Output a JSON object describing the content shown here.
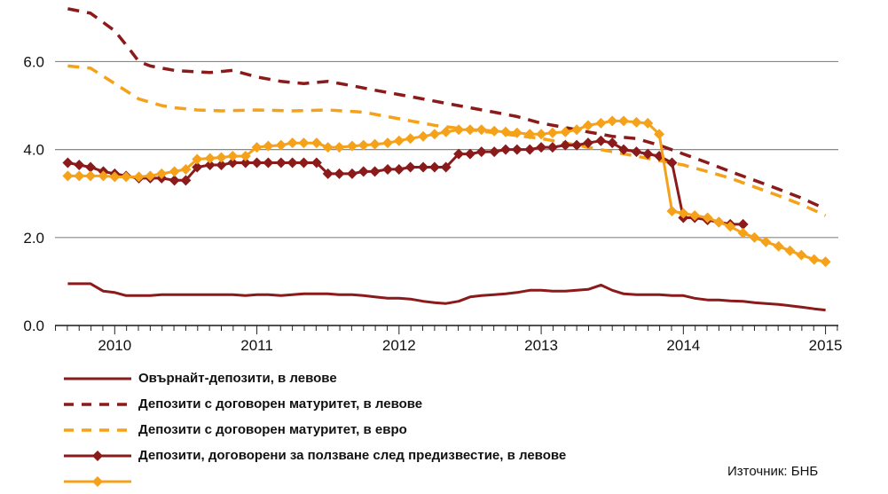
{
  "chart_data": {
    "type": "line",
    "xlabel": "",
    "ylabel": "",
    "ylim": [
      0,
      7.4
    ],
    "yticks": [
      "0.0",
      "2.0",
      "4.0",
      "6.0"
    ],
    "ytick_values": [
      0,
      2,
      4,
      6
    ],
    "xticks": [
      "2010",
      "2011",
      "2012",
      "2013",
      "2014",
      "2015"
    ],
    "xtick_values": [
      2010,
      2011,
      2012,
      2013,
      2014,
      2015
    ],
    "xlim": [
      2009.58,
      2015.09
    ],
    "grid": true,
    "legend_position": "bottom",
    "series": [
      {
        "name": "Овърнайт-депозити, в левове",
        "color": "#8b1a1a",
        "style": "solid",
        "x": [
          2009.67,
          2009.83,
          2009.92,
          2010.0,
          2010.08,
          2010.17,
          2010.25,
          2010.33,
          2010.42,
          2010.5,
          2010.58,
          2010.67,
          2010.75,
          2010.83,
          2010.92,
          2011.0,
          2011.08,
          2011.17,
          2011.25,
          2011.33,
          2011.42,
          2011.5,
          2011.58,
          2011.67,
          2011.75,
          2011.83,
          2011.92,
          2012.0,
          2012.08,
          2012.17,
          2012.25,
          2012.33,
          2012.42,
          2012.5,
          2012.58,
          2012.67,
          2012.75,
          2012.83,
          2012.92,
          2013.0,
          2013.08,
          2013.17,
          2013.25,
          2013.33,
          2013.42,
          2013.5,
          2013.58,
          2013.67,
          2013.75,
          2013.83,
          2013.92,
          2014.0,
          2014.08,
          2014.17,
          2014.25,
          2014.33,
          2014.42,
          2014.5,
          2014.58,
          2014.67,
          2014.75,
          2014.83,
          2014.92,
          2015.0
        ],
        "values": [
          0.95,
          0.95,
          0.78,
          0.75,
          0.68,
          0.68,
          0.68,
          0.7,
          0.7,
          0.7,
          0.7,
          0.7,
          0.7,
          0.7,
          0.68,
          0.7,
          0.7,
          0.68,
          0.7,
          0.72,
          0.72,
          0.72,
          0.7,
          0.7,
          0.68,
          0.65,
          0.62,
          0.62,
          0.6,
          0.55,
          0.52,
          0.5,
          0.55,
          0.65,
          0.68,
          0.7,
          0.72,
          0.75,
          0.8,
          0.8,
          0.78,
          0.78,
          0.8,
          0.82,
          0.92,
          0.8,
          0.72,
          0.7,
          0.7,
          0.7,
          0.68,
          0.68,
          0.62,
          0.58,
          0.58,
          0.56,
          0.55,
          0.52,
          0.5,
          0.48,
          0.45,
          0.42,
          0.38,
          0.35
        ]
      },
      {
        "name": "Депозити с договорен матуритет, в левове",
        "color": "#8b1a1a",
        "style": "dashed",
        "x": [
          2009.67,
          2009.83,
          2010.0,
          2010.1,
          2010.17,
          2010.25,
          2010.42,
          2010.5,
          2010.67,
          2010.83,
          2011.0,
          2011.17,
          2011.33,
          2011.5,
          2011.67,
          2011.83,
          2012.0,
          2012.17,
          2012.33,
          2012.5,
          2012.67,
          2012.83,
          2013.0,
          2013.17,
          2013.33,
          2013.5,
          2013.67,
          2013.83,
          2014.0,
          2014.17,
          2014.33,
          2014.5,
          2014.67,
          2014.83,
          2015.0
        ],
        "values": [
          7.2,
          7.1,
          6.7,
          6.3,
          6.0,
          5.9,
          5.8,
          5.78,
          5.75,
          5.8,
          5.65,
          5.55,
          5.5,
          5.55,
          5.45,
          5.35,
          5.25,
          5.15,
          5.05,
          4.95,
          4.85,
          4.75,
          4.6,
          4.5,
          4.4,
          4.3,
          4.25,
          4.1,
          3.9,
          3.7,
          3.5,
          3.3,
          3.1,
          2.9,
          2.65
        ]
      },
      {
        "name": "Депозити с договорен матуритет, в евро",
        "color": "#f5a21a",
        "style": "dashed",
        "x": [
          2009.67,
          2009.83,
          2010.0,
          2010.17,
          2010.33,
          2010.42,
          2010.58,
          2010.75,
          2011.0,
          2011.25,
          2011.5,
          2011.75,
          2012.0,
          2012.25,
          2012.5,
          2012.75,
          2013.0,
          2013.17,
          2013.33,
          2013.5,
          2013.67,
          2013.83,
          2014.0,
          2014.17,
          2014.33,
          2014.5,
          2014.67,
          2014.83,
          2015.0
        ],
        "values": [
          5.9,
          5.85,
          5.5,
          5.15,
          5.0,
          4.95,
          4.9,
          4.88,
          4.9,
          4.88,
          4.9,
          4.85,
          4.7,
          4.55,
          4.45,
          4.35,
          4.25,
          4.15,
          4.05,
          3.95,
          3.85,
          3.75,
          3.65,
          3.5,
          3.35,
          3.15,
          2.95,
          2.75,
          2.5
        ]
      },
      {
        "name": "Депозити, договорени за ползване след предизвестие, в левове",
        "color": "#8b1a1a",
        "style": "solid-diamond",
        "x": [
          2009.67,
          2009.75,
          2009.83,
          2009.92,
          2010.0,
          2010.08,
          2010.17,
          2010.25,
          2010.33,
          2010.42,
          2010.5,
          2010.58,
          2010.67,
          2010.75,
          2010.83,
          2010.92,
          2011.0,
          2011.08,
          2011.17,
          2011.25,
          2011.33,
          2011.42,
          2011.5,
          2011.58,
          2011.67,
          2011.75,
          2011.83,
          2011.92,
          2012.0,
          2012.08,
          2012.17,
          2012.25,
          2012.33,
          2012.42,
          2012.5,
          2012.58,
          2012.67,
          2012.75,
          2012.83,
          2012.92,
          2013.0,
          2013.08,
          2013.17,
          2013.25,
          2013.33,
          2013.42,
          2013.5,
          2013.58,
          2013.67,
          2013.75,
          2013.83,
          2013.92,
          2014.0,
          2014.08,
          2014.17,
          2014.25,
          2014.33,
          2014.42
        ],
        "values": [
          3.7,
          3.65,
          3.6,
          3.5,
          3.45,
          3.4,
          3.35,
          3.35,
          3.35,
          3.3,
          3.3,
          3.6,
          3.65,
          3.65,
          3.7,
          3.7,
          3.7,
          3.7,
          3.7,
          3.7,
          3.7,
          3.7,
          3.45,
          3.45,
          3.45,
          3.5,
          3.5,
          3.55,
          3.55,
          3.6,
          3.6,
          3.6,
          3.6,
          3.9,
          3.9,
          3.95,
          3.95,
          4.0,
          4.0,
          4.0,
          4.05,
          4.05,
          4.1,
          4.1,
          4.15,
          4.2,
          4.15,
          4.0,
          3.95,
          3.9,
          3.85,
          3.7,
          2.45,
          2.45,
          2.4,
          2.35,
          2.3,
          2.3
        ]
      },
      {
        "name": "",
        "color": "#f5a21a",
        "style": "solid-diamond",
        "x": [
          2009.67,
          2009.75,
          2009.83,
          2009.92,
          2010.0,
          2010.08,
          2010.17,
          2010.25,
          2010.33,
          2010.42,
          2010.5,
          2010.58,
          2010.67,
          2010.75,
          2010.83,
          2010.92,
          2011.0,
          2011.08,
          2011.17,
          2011.25,
          2011.33,
          2011.42,
          2011.5,
          2011.58,
          2011.67,
          2011.75,
          2011.83,
          2011.92,
          2012.0,
          2012.08,
          2012.17,
          2012.25,
          2012.33,
          2012.42,
          2012.5,
          2012.58,
          2012.67,
          2012.75,
          2012.83,
          2012.92,
          2013.0,
          2013.08,
          2013.17,
          2013.25,
          2013.33,
          2013.42,
          2013.5,
          2013.58,
          2013.67,
          2013.75,
          2013.83,
          2013.92,
          2014.0,
          2014.08,
          2014.17,
          2014.25,
          2014.33,
          2014.42,
          2014.5,
          2014.58,
          2014.67,
          2014.75,
          2014.83,
          2014.92,
          2015.0
        ],
        "values": [
          3.4,
          3.4,
          3.4,
          3.4,
          3.38,
          3.38,
          3.38,
          3.4,
          3.45,
          3.5,
          3.55,
          3.78,
          3.8,
          3.82,
          3.85,
          3.85,
          4.05,
          4.08,
          4.1,
          4.15,
          4.15,
          4.15,
          4.05,
          4.05,
          4.08,
          4.1,
          4.12,
          4.15,
          4.2,
          4.25,
          4.3,
          4.35,
          4.4,
          4.45,
          4.45,
          4.45,
          4.42,
          4.4,
          4.38,
          4.35,
          4.35,
          4.38,
          4.4,
          4.45,
          4.55,
          4.6,
          4.65,
          4.65,
          4.62,
          4.6,
          4.35,
          2.6,
          2.55,
          2.5,
          2.45,
          2.35,
          2.25,
          2.1,
          2.0,
          1.9,
          1.8,
          1.7,
          1.6,
          1.5,
          1.45
        ]
      }
    ],
    "source": "Източник: БНБ"
  }
}
